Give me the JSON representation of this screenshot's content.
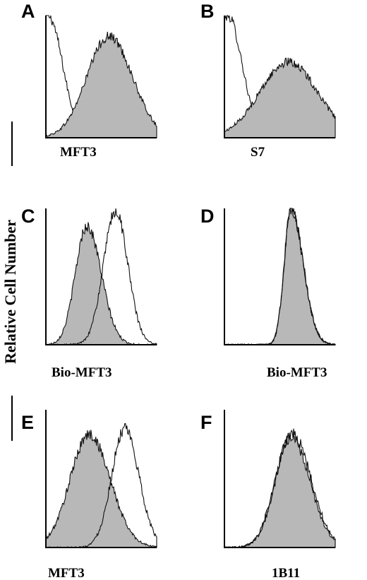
{
  "ylabel": "Relative Cell Number",
  "chart_data": [
    {
      "type": "area",
      "panel": "A",
      "xlabel": "MFT3",
      "series": [
        {
          "style": "open",
          "peak_x": 0.02,
          "width": 0.13,
          "skew": 1.3,
          "peak_y": 1.0
        },
        {
          "style": "filled",
          "peak_x": 0.57,
          "width": 0.21,
          "skew": 0.95,
          "peak_y": 0.83
        }
      ]
    },
    {
      "type": "area",
      "panel": "B",
      "xlabel": "S7",
      "series": [
        {
          "style": "open",
          "peak_x": 0.03,
          "width": 0.13,
          "skew": 1.3,
          "peak_y": 1.0
        },
        {
          "style": "filled",
          "peak_x": 0.58,
          "width": 0.26,
          "skew": 1.0,
          "peak_y": 0.62
        }
      ]
    },
    {
      "type": "area",
      "panel": "C",
      "xlabel": "Bio-MFT3",
      "series": [
        {
          "style": "filled",
          "peak_x": 0.37,
          "width": 0.13,
          "skew": 0.8,
          "peak_y": 0.87
        },
        {
          "style": "open",
          "peak_x": 0.63,
          "width": 0.11,
          "skew": 1.0,
          "peak_y": 0.98
        }
      ]
    },
    {
      "type": "area",
      "panel": "D",
      "xlabel": "Bio-MFT3",
      "series": [
        {
          "style": "filled",
          "peak_x": 0.6,
          "width": 0.11,
          "skew": 0.55,
          "peak_y": 1.0
        },
        {
          "style": "open",
          "peak_x": 0.6,
          "width": 0.11,
          "skew": 0.55,
          "peak_y": 1.0
        }
      ]
    },
    {
      "type": "area",
      "panel": "E",
      "xlabel": "MFT3",
      "series": [
        {
          "style": "filled",
          "peak_x": 0.39,
          "width": 0.19,
          "skew": 0.9,
          "peak_y": 0.82
        },
        {
          "style": "open",
          "peak_x": 0.71,
          "width": 0.13,
          "skew": 0.9,
          "peak_y": 0.86
        }
      ]
    },
    {
      "type": "area",
      "panel": "F",
      "xlabel": "1B11",
      "series": [
        {
          "style": "filled",
          "peak_x": 0.6,
          "width": 0.17,
          "skew": 0.85,
          "peak_y": 0.8
        },
        {
          "style": "open",
          "peak_x": 0.61,
          "width": 0.17,
          "skew": 0.85,
          "peak_y": 0.83
        }
      ]
    }
  ]
}
